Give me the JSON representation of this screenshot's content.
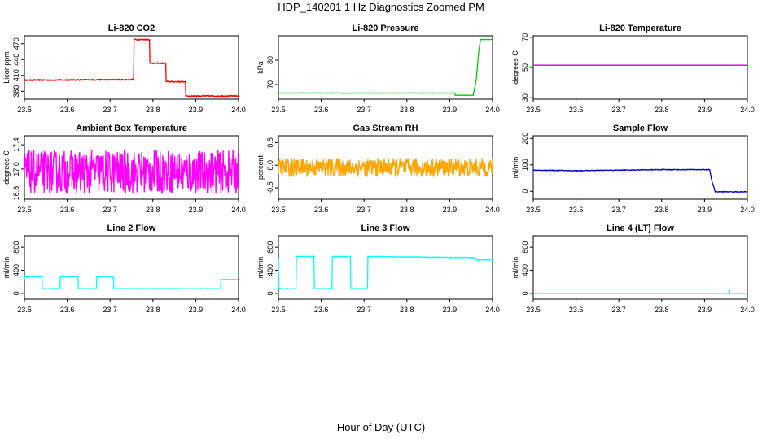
{
  "figure": {
    "title": "HDP_140201  1 Hz Diagnostics Zoomed PM",
    "xlabel": "Hour of Day (UTC)"
  },
  "chart_data": [
    {
      "type": "line",
      "title": "Li-820 CO2",
      "ylabel": "Licor ppm",
      "color": "#ff0000",
      "xlim": [
        23.5,
        24.0
      ],
      "ylim": [
        365,
        485
      ],
      "xticks": [
        23.5,
        23.6,
        23.7,
        23.8,
        23.9,
        24.0
      ],
      "yticks": [
        380,
        410,
        440,
        470
      ],
      "xtick_labels": [
        "23.5",
        "23.6",
        "23.7",
        "23.8",
        "23.9",
        "24.0"
      ],
      "ytick_labels": [
        "380",
        "410",
        "440",
        "470"
      ],
      "noise": 1.2,
      "series": [
        {
          "x": [
            23.5,
            23.755,
            23.756,
            23.792,
            23.793,
            23.83,
            23.831,
            23.876,
            23.877,
            24.0
          ],
          "y": [
            401,
            402,
            478,
            478,
            433,
            433,
            398,
            398,
            371,
            371
          ]
        }
      ]
    },
    {
      "type": "line",
      "title": "Li-820 Pressure",
      "ylabel": "kPa",
      "color": "#00cc00",
      "xlim": [
        23.5,
        24.0
      ],
      "ylim": [
        64,
        90
      ],
      "xticks": [
        23.5,
        23.6,
        23.7,
        23.8,
        23.9,
        24.0
      ],
      "yticks": [
        70,
        80
      ],
      "xtick_labels": [
        "23.5",
        "23.6",
        "23.7",
        "23.8",
        "23.9",
        "24.0"
      ],
      "ytick_labels": [
        "70",
        "80"
      ],
      "noise": 0.1,
      "series": [
        {
          "x": [
            23.5,
            23.912,
            23.913,
            23.955,
            23.962,
            23.968,
            23.972,
            24.0
          ],
          "y": [
            66.5,
            66.5,
            65.6,
            65.6,
            72,
            84,
            88.5,
            88.5
          ]
        }
      ]
    },
    {
      "type": "line",
      "title": "Li-820 Temperature",
      "ylabel": "degrees C",
      "color": "#cc00cc",
      "xlim": [
        23.5,
        24.0
      ],
      "ylim": [
        29,
        71
      ],
      "xticks": [
        23.5,
        23.6,
        23.7,
        23.8,
        23.9,
        24.0
      ],
      "yticks": [
        30,
        50,
        70
      ],
      "xtick_labels": [
        "23.5",
        "23.6",
        "23.7",
        "23.8",
        "23.9",
        "24.0"
      ],
      "ytick_labels": [
        "30",
        "50",
        "70"
      ],
      "noise": 0,
      "series": [
        {
          "x": [
            23.5,
            24.0
          ],
          "y": [
            51.5,
            51.5
          ]
        }
      ]
    },
    {
      "type": "line",
      "title": "Ambient Box Temperature",
      "ylabel": "degrees C",
      "color": "#ff00ff",
      "xlim": [
        23.5,
        24.0
      ],
      "ylim": [
        16.5,
        17.55
      ],
      "xticks": [
        23.5,
        23.6,
        23.7,
        23.8,
        23.9,
        24.0
      ],
      "yticks": [
        16.6,
        17.0,
        17.4
      ],
      "xtick_labels": [
        "23.5",
        "23.6",
        "23.7",
        "23.8",
        "23.9",
        "24.0"
      ],
      "ytick_labels": [
        "16.6",
        "17.0",
        "17.4"
      ],
      "noise": 0.36,
      "series": [
        {
          "x": [
            23.5,
            24.0
          ],
          "y": [
            16.95,
            16.95
          ]
        }
      ]
    },
    {
      "type": "line",
      "title": "Gas Stream RH",
      "ylabel": "percent",
      "color": "#ffa500",
      "xlim": [
        23.5,
        24.0
      ],
      "ylim": [
        -0.75,
        0.65
      ],
      "xticks": [
        23.5,
        23.6,
        23.7,
        23.8,
        23.9,
        24.0
      ],
      "yticks": [
        -0.5,
        0.0,
        0.5
      ],
      "xtick_labels": [
        "23.5",
        "23.6",
        "23.7",
        "23.8",
        "23.9",
        "24.0"
      ],
      "ytick_labels": [
        "-0.5",
        "0.0",
        "0.5"
      ],
      "noise": 0.2,
      "series": [
        {
          "x": [
            23.5,
            24.0
          ],
          "y": [
            -0.05,
            -0.05
          ]
        }
      ]
    },
    {
      "type": "line",
      "title": "Sample Flow",
      "ylabel": "ml/min",
      "color": "#0000cc",
      "xlim": [
        23.5,
        24.0
      ],
      "ylim": [
        -30,
        210
      ],
      "xticks": [
        23.5,
        23.6,
        23.7,
        23.8,
        23.9,
        24.0
      ],
      "yticks": [
        0,
        100,
        200
      ],
      "xtick_labels": [
        "23.5",
        "23.6",
        "23.7",
        "23.8",
        "23.9",
        "24.0"
      ],
      "ytick_labels": [
        "0",
        "100",
        "200"
      ],
      "noise": 1.5,
      "series": [
        {
          "x": [
            23.5,
            23.6,
            23.7,
            23.8,
            23.912,
            23.917,
            23.925,
            24.0
          ],
          "y": [
            80,
            78,
            80,
            82,
            82,
            40,
            -2,
            -2
          ]
        }
      ]
    },
    {
      "type": "line",
      "title": "Line 2 Flow",
      "ylabel": "ml/min",
      "color": "#00ffff",
      "xlim": [
        23.5,
        24.0
      ],
      "ylim": [
        -100,
        1000
      ],
      "xticks": [
        23.5,
        23.6,
        23.7,
        23.8,
        23.9,
        24.0
      ],
      "yticks": [
        0,
        400,
        800
      ],
      "xtick_labels": [
        "23.5",
        "23.6",
        "23.7",
        "23.8",
        "23.9",
        "24.0"
      ],
      "ytick_labels": [
        "0",
        "400",
        "800"
      ],
      "noise": 5,
      "series": [
        {
          "x": [
            23.5,
            23.501,
            23.541,
            23.542,
            23.583,
            23.584,
            23.625,
            23.626,
            23.668,
            23.669,
            23.708,
            23.709,
            23.958,
            23.959,
            24.0
          ],
          "y": [
            230,
            290,
            290,
            80,
            80,
            290,
            290,
            80,
            80,
            290,
            290,
            80,
            80,
            240,
            240
          ]
        }
      ]
    },
    {
      "type": "line",
      "title": "Line 3 Flow",
      "ylabel": "ml/min",
      "color": "#00ffff",
      "xlim": [
        23.5,
        24.0
      ],
      "ylim": [
        -100,
        1000
      ],
      "xticks": [
        23.5,
        23.6,
        23.7,
        23.8,
        23.9,
        24.0
      ],
      "yticks": [
        0,
        400,
        800
      ],
      "xtick_labels": [
        "23.5",
        "23.6",
        "23.7",
        "23.8",
        "23.9",
        "24.0"
      ],
      "ytick_labels": [
        "0",
        "400",
        "800"
      ],
      "noise": 6,
      "series": [
        {
          "x": [
            23.5,
            23.501,
            23.541,
            23.542,
            23.583,
            23.584,
            23.625,
            23.626,
            23.668,
            23.669,
            23.708,
            23.709,
            23.96,
            23.962,
            24.0
          ],
          "y": [
            600,
            80,
            80,
            640,
            640,
            80,
            80,
            640,
            640,
            80,
            80,
            640,
            620,
            580,
            580
          ]
        }
      ]
    },
    {
      "type": "line",
      "title": "Line 4 (LT) Flow",
      "ylabel": "ml/min",
      "color": "#00ffff",
      "xlim": [
        23.5,
        24.0
      ],
      "ylim": [
        -100,
        1000
      ],
      "xticks": [
        23.5,
        23.6,
        23.7,
        23.8,
        23.9,
        24.0
      ],
      "yticks": [
        0,
        400,
        800
      ],
      "xtick_labels": [
        "23.5",
        "23.6",
        "23.7",
        "23.8",
        "23.9",
        "24.0"
      ],
      "ytick_labels": [
        "0",
        "400",
        "800"
      ],
      "noise": 0,
      "series": [
        {
          "x": [
            23.5,
            23.958,
            23.9585,
            23.959,
            24.0
          ],
          "y": [
            0,
            0,
            60,
            0,
            0
          ]
        }
      ]
    }
  ]
}
